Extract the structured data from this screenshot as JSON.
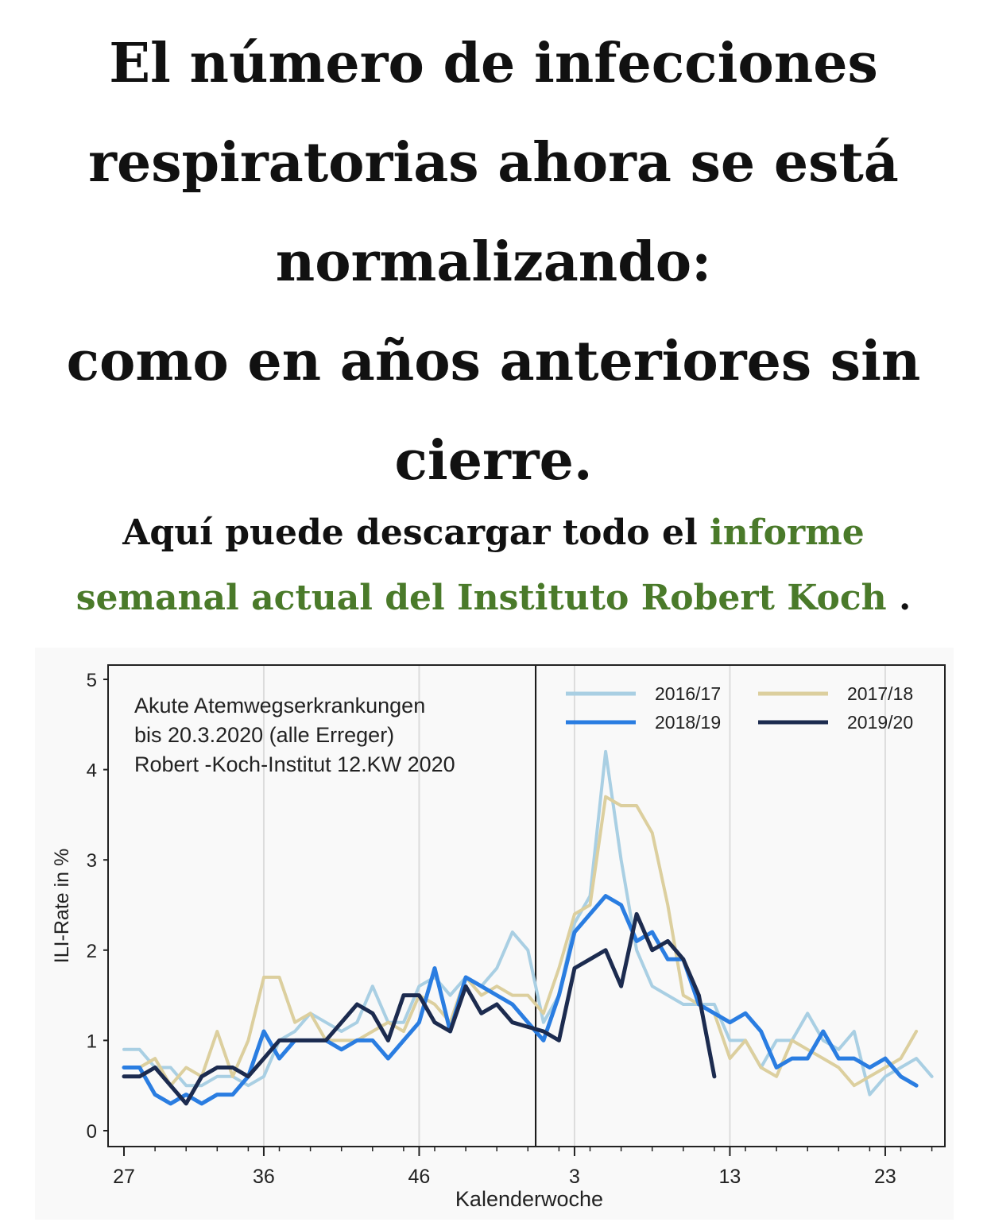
{
  "headline": {
    "line1": "El número de infecciones",
    "line2": "respiratorias ahora se está",
    "line3": "normalizando:",
    "line4": "como en años anteriores sin",
    "line5": "cierre."
  },
  "subline": {
    "text_before": "Aquí puede descargar todo el ",
    "link_part1": "informe",
    "link_part2": "semanal actual del Instituto Robert Koch",
    "text_after": " ."
  },
  "colors": {
    "link": "#4a7a2a",
    "s2016": "#a9cfe3",
    "s2017": "#dccf9e",
    "s2018": "#2a7de1",
    "s2019": "#1c2b4f"
  },
  "chart_data": {
    "type": "line",
    "annotation": [
      "Akute Atemwegserkrankungen",
      "bis 20.3.2020 (alle Erreger)",
      "Robert -Koch-Institut 12.KW 2020"
    ],
    "xlabel": "Kalenderwoche",
    "ylabel": "ILI-Rate in %",
    "ylim": [
      0,
      5
    ],
    "yticks": [
      0,
      1,
      2,
      3,
      4,
      5
    ],
    "x_tick_labels": [
      "27",
      "36",
      "46",
      "3",
      "13",
      "23"
    ],
    "x_tick_index": [
      0,
      9,
      19,
      29,
      39,
      49
    ],
    "year_boundary_index": 26.5,
    "legend_position": "top-right",
    "series": [
      {
        "name": "2016/17",
        "color": "#a9cfe3",
        "values": [
          0.9,
          0.9,
          0.7,
          0.7,
          0.5,
          0.5,
          0.6,
          0.6,
          0.5,
          0.6,
          1.0,
          1.1,
          1.3,
          1.2,
          1.1,
          1.2,
          1.6,
          1.2,
          1.2,
          1.6,
          1.7,
          1.5,
          1.7,
          1.6,
          1.8,
          2.2,
          2.0,
          1.2,
          1.5,
          2.3,
          2.6,
          4.2,
          3.0,
          2.0,
          1.6,
          1.5,
          1.4,
          1.4,
          1.4,
          1.0,
          1.0,
          0.7,
          1.0,
          1.0,
          1.3,
          1.0,
          0.9,
          1.1,
          0.4,
          0.6,
          0.7,
          0.8,
          0.6
        ]
      },
      {
        "name": "2017/18",
        "color": "#dccf9e",
        "values": [
          0.7,
          0.7,
          0.8,
          0.5,
          0.7,
          0.6,
          1.1,
          0.6,
          1.0,
          1.7,
          1.7,
          1.2,
          1.3,
          1.0,
          1.0,
          1.0,
          1.1,
          1.2,
          1.1,
          1.5,
          1.4,
          1.2,
          1.7,
          1.5,
          1.6,
          1.5,
          1.5,
          1.3,
          1.8,
          2.4,
          2.5,
          3.7,
          3.6,
          3.6,
          3.3,
          2.5,
          1.5,
          1.4,
          1.3,
          0.8,
          1.0,
          0.7,
          0.6,
          1.0,
          0.9,
          0.8,
          0.7,
          0.5,
          0.6,
          0.7,
          0.8,
          1.1
        ]
      },
      {
        "name": "2018/19",
        "color": "#2a7de1",
        "values": [
          0.7,
          0.7,
          0.4,
          0.3,
          0.4,
          0.3,
          0.4,
          0.4,
          0.6,
          1.1,
          0.8,
          1.0,
          1.0,
          1.0,
          0.9,
          1.0,
          1.0,
          0.8,
          1.0,
          1.2,
          1.8,
          1.1,
          1.7,
          1.6,
          1.5,
          1.4,
          1.2,
          1.0,
          1.5,
          2.2,
          2.4,
          2.6,
          2.5,
          2.1,
          2.2,
          1.9,
          1.9,
          1.4,
          1.3,
          1.2,
          1.3,
          1.1,
          0.7,
          0.8,
          0.8,
          1.1,
          0.8,
          0.8,
          0.7,
          0.8,
          0.6,
          0.5
        ]
      },
      {
        "name": "2019/20",
        "color": "#1c2b4f",
        "values": [
          0.6,
          0.6,
          0.7,
          0.5,
          0.3,
          0.6,
          0.7,
          0.7,
          0.6,
          0.8,
          1.0,
          1.0,
          1.0,
          1.0,
          1.2,
          1.4,
          1.3,
          1.0,
          1.5,
          1.5,
          1.2,
          1.1,
          1.6,
          1.3,
          1.4,
          1.2,
          1.15,
          1.1,
          1.0,
          1.8,
          1.9,
          2.0,
          1.6,
          2.4,
          2.0,
          2.1,
          1.9,
          1.5,
          0.6
        ]
      }
    ]
  }
}
